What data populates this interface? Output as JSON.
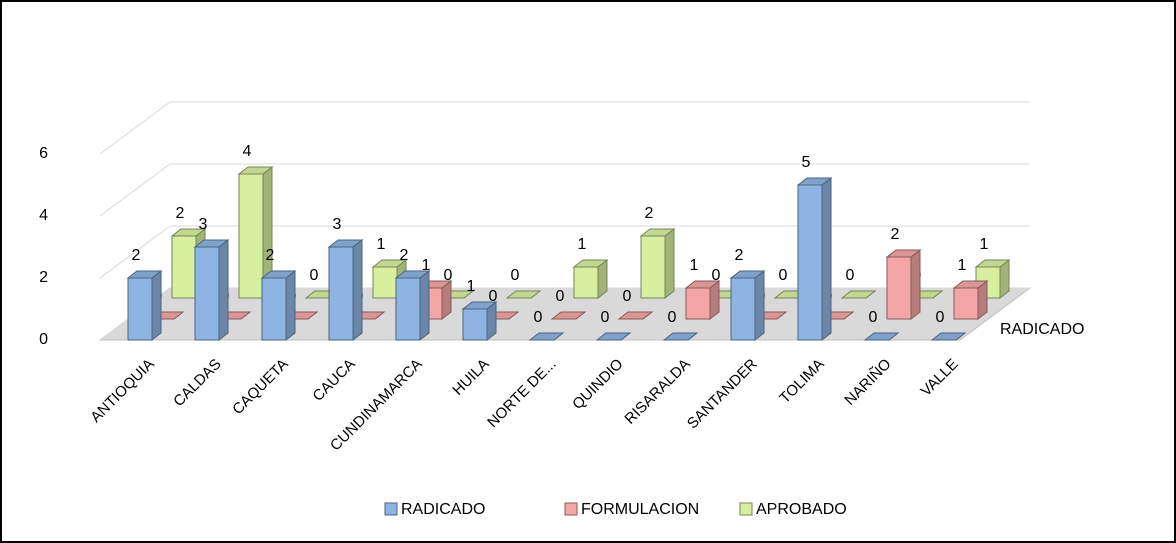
{
  "chart_data": {
    "type": "bar3d",
    "categories": [
      "ANTIOQUIA",
      "CALDAS",
      "CAQUETA",
      "CAUCA",
      "CUNDINAMARCA",
      "HUILA",
      "NORTE DE...",
      "QUINDIO",
      "RISARALDA",
      "SANTANDER",
      "TOLIMA",
      "NARIÑO",
      "VALLE"
    ],
    "series": [
      {
        "name": "RADICADO",
        "color": "#8db4e2",
        "values": [
          2,
          3,
          2,
          3,
          2,
          1,
          0,
          0,
          0,
          2,
          5,
          0,
          0
        ]
      },
      {
        "name": "FORMULACION",
        "color": "#f4a6a6",
        "values": [
          0,
          0,
          0,
          0,
          1,
          0,
          0,
          0,
          1,
          0,
          0,
          2,
          1
        ]
      },
      {
        "name": "APROBADO",
        "color": "#d7f0a0",
        "values": [
          2,
          4,
          0,
          1,
          0,
          0,
          1,
          2,
          0,
          0,
          0,
          0,
          1
        ]
      }
    ],
    "ylim": [
      0,
      6
    ],
    "yticks": [
      0,
      2,
      4,
      6
    ],
    "grid": true
  }
}
